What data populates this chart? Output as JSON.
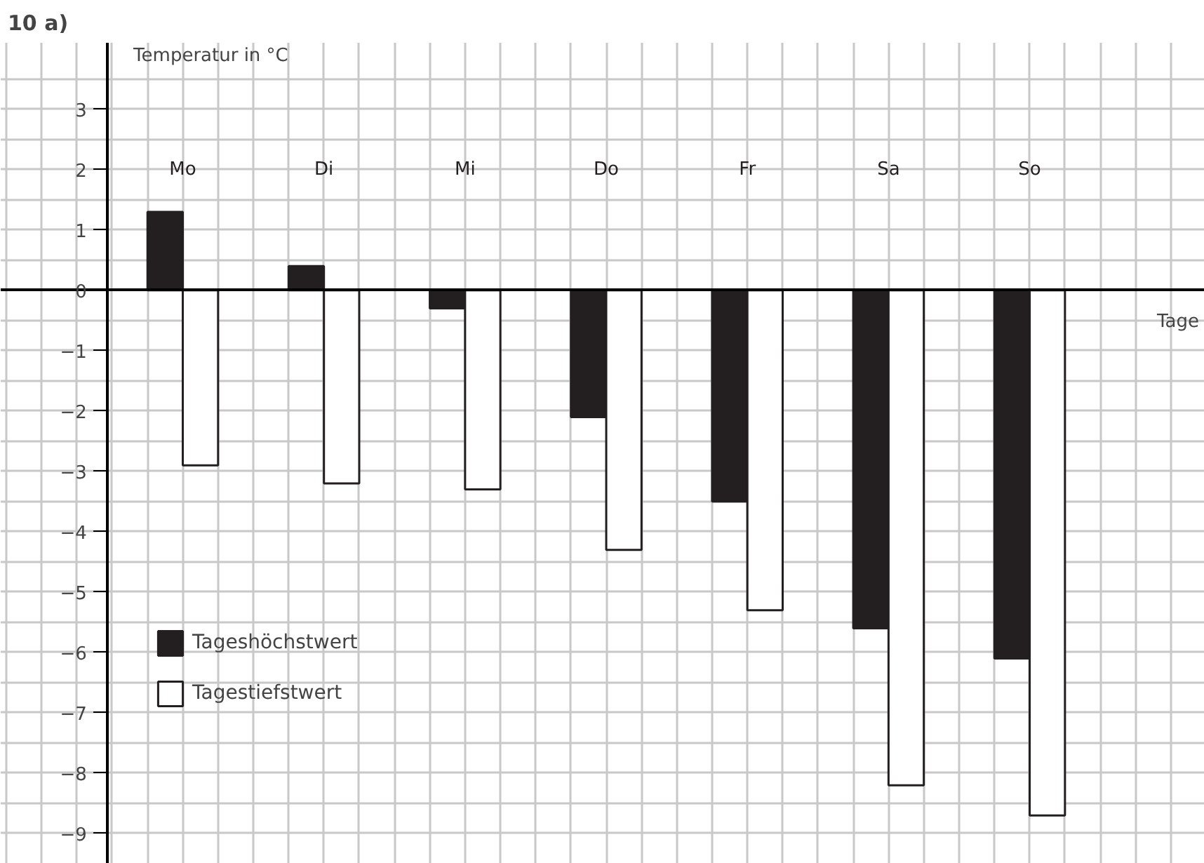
{
  "chart_data": {
    "type": "bar",
    "title": "10 a)",
    "xlabel": "Tage",
    "ylabel": "Temperatur in °C",
    "categories": [
      "Mo",
      "Di",
      "Mi",
      "Do",
      "Fr",
      "Sa",
      "So"
    ],
    "series": [
      {
        "name": "Tageshöchstwert",
        "color": "#231f20",
        "values": [
          1.3,
          0.4,
          -0.3,
          -2.1,
          -3.5,
          -5.6,
          -6.1
        ]
      },
      {
        "name": "Tagestiefstwert",
        "color": "#ffffff",
        "values": [
          -2.9,
          -3.2,
          -3.3,
          -4.3,
          -5.3,
          -8.2,
          -8.7
        ]
      }
    ],
    "ylim": [
      -9.5,
      4.1
    ],
    "yticks": [
      -9,
      -8,
      -7,
      -6,
      -5,
      -4,
      -3,
      -2,
      -1,
      0,
      1,
      2,
      3
    ],
    "grid": true,
    "legend": "bottom left"
  }
}
